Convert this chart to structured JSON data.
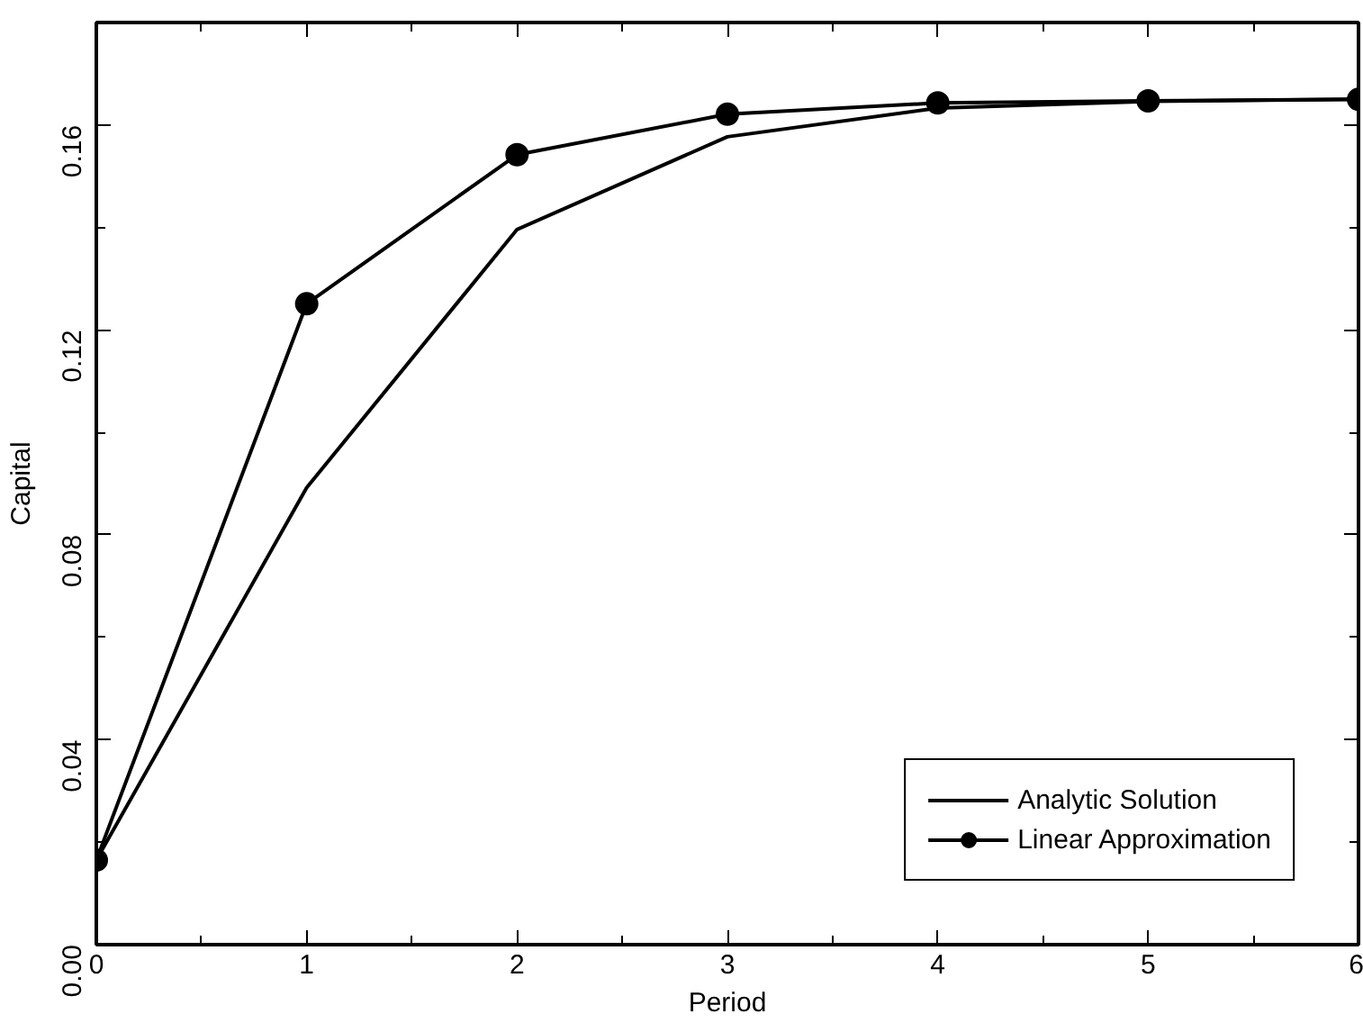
{
  "chart_data": {
    "type": "line",
    "xlabel": "Period",
    "ylabel": "Capital",
    "x": [
      0,
      1,
      2,
      3,
      4,
      5,
      6
    ],
    "series": [
      {
        "name": "Analytic Solution",
        "color": "#000000",
        "marker": "none",
        "values": [
          0.0165,
          0.0892,
          0.1396,
          0.1577,
          0.1633,
          0.1646,
          0.165
        ]
      },
      {
        "name": "Linear Approximation",
        "color": "#000000",
        "marker": "circle",
        "values": [
          0.0165,
          0.1251,
          0.1542,
          0.1621,
          0.1643,
          0.1647,
          0.165
        ]
      }
    ],
    "xlim": [
      0,
      6
    ],
    "xticks": [
      0,
      1,
      2,
      3,
      4,
      5,
      6
    ],
    "ylim": [
      0,
      0.18
    ],
    "yticks": [
      {
        "value": 0,
        "label": "0.00"
      },
      0.04,
      0.08,
      0.12,
      0.16
    ],
    "grid": false,
    "legend": "bottom right",
    "line_style": "solid"
  }
}
